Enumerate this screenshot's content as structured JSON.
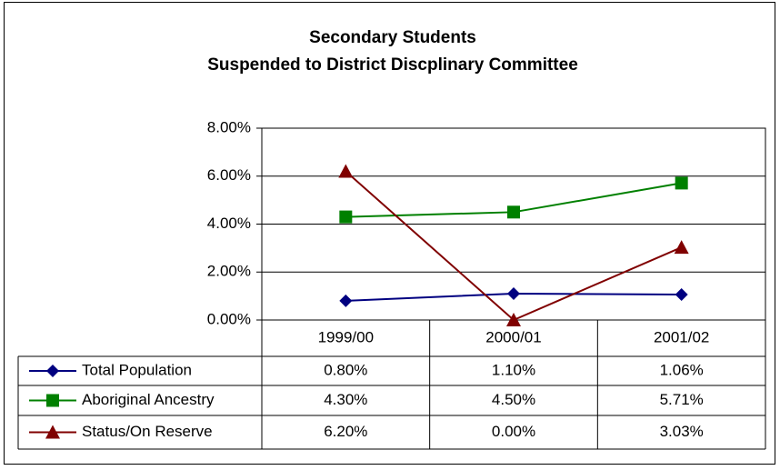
{
  "chart_data": {
    "type": "line",
    "title": "Secondary Students",
    "subtitle": "Suspended to District Discplinary Committee",
    "categories": [
      "1999/00",
      "2000/01",
      "2001/02"
    ],
    "series": [
      {
        "name": "Total Population",
        "color": "#000080",
        "marker": "diamond",
        "values": [
          0.8,
          1.1,
          1.06
        ],
        "value_labels": [
          "0.80%",
          "1.10%",
          "1.06%"
        ]
      },
      {
        "name": "Aboriginal Ancestry",
        "color": "#008000",
        "marker": "square",
        "values": [
          4.3,
          4.5,
          5.71
        ],
        "value_labels": [
          "4.30%",
          "4.50%",
          "5.71%"
        ]
      },
      {
        "name": "Status/On Reserve",
        "color": "#800000",
        "marker": "triangle",
        "values": [
          6.2,
          0,
          3.03
        ],
        "value_labels": [
          "6.20%",
          "0.00%",
          "3.03%"
        ]
      }
    ],
    "ylim": [
      0,
      8
    ],
    "yticks": [
      {
        "value": 0,
        "label": "0.00%"
      },
      {
        "value": 2,
        "label": "2.00%"
      },
      {
        "value": 4,
        "label": "4.00%"
      },
      {
        "value": 6,
        "label": "6.00%"
      },
      {
        "value": 8,
        "label": "8.00%"
      }
    ],
    "grid": true
  }
}
